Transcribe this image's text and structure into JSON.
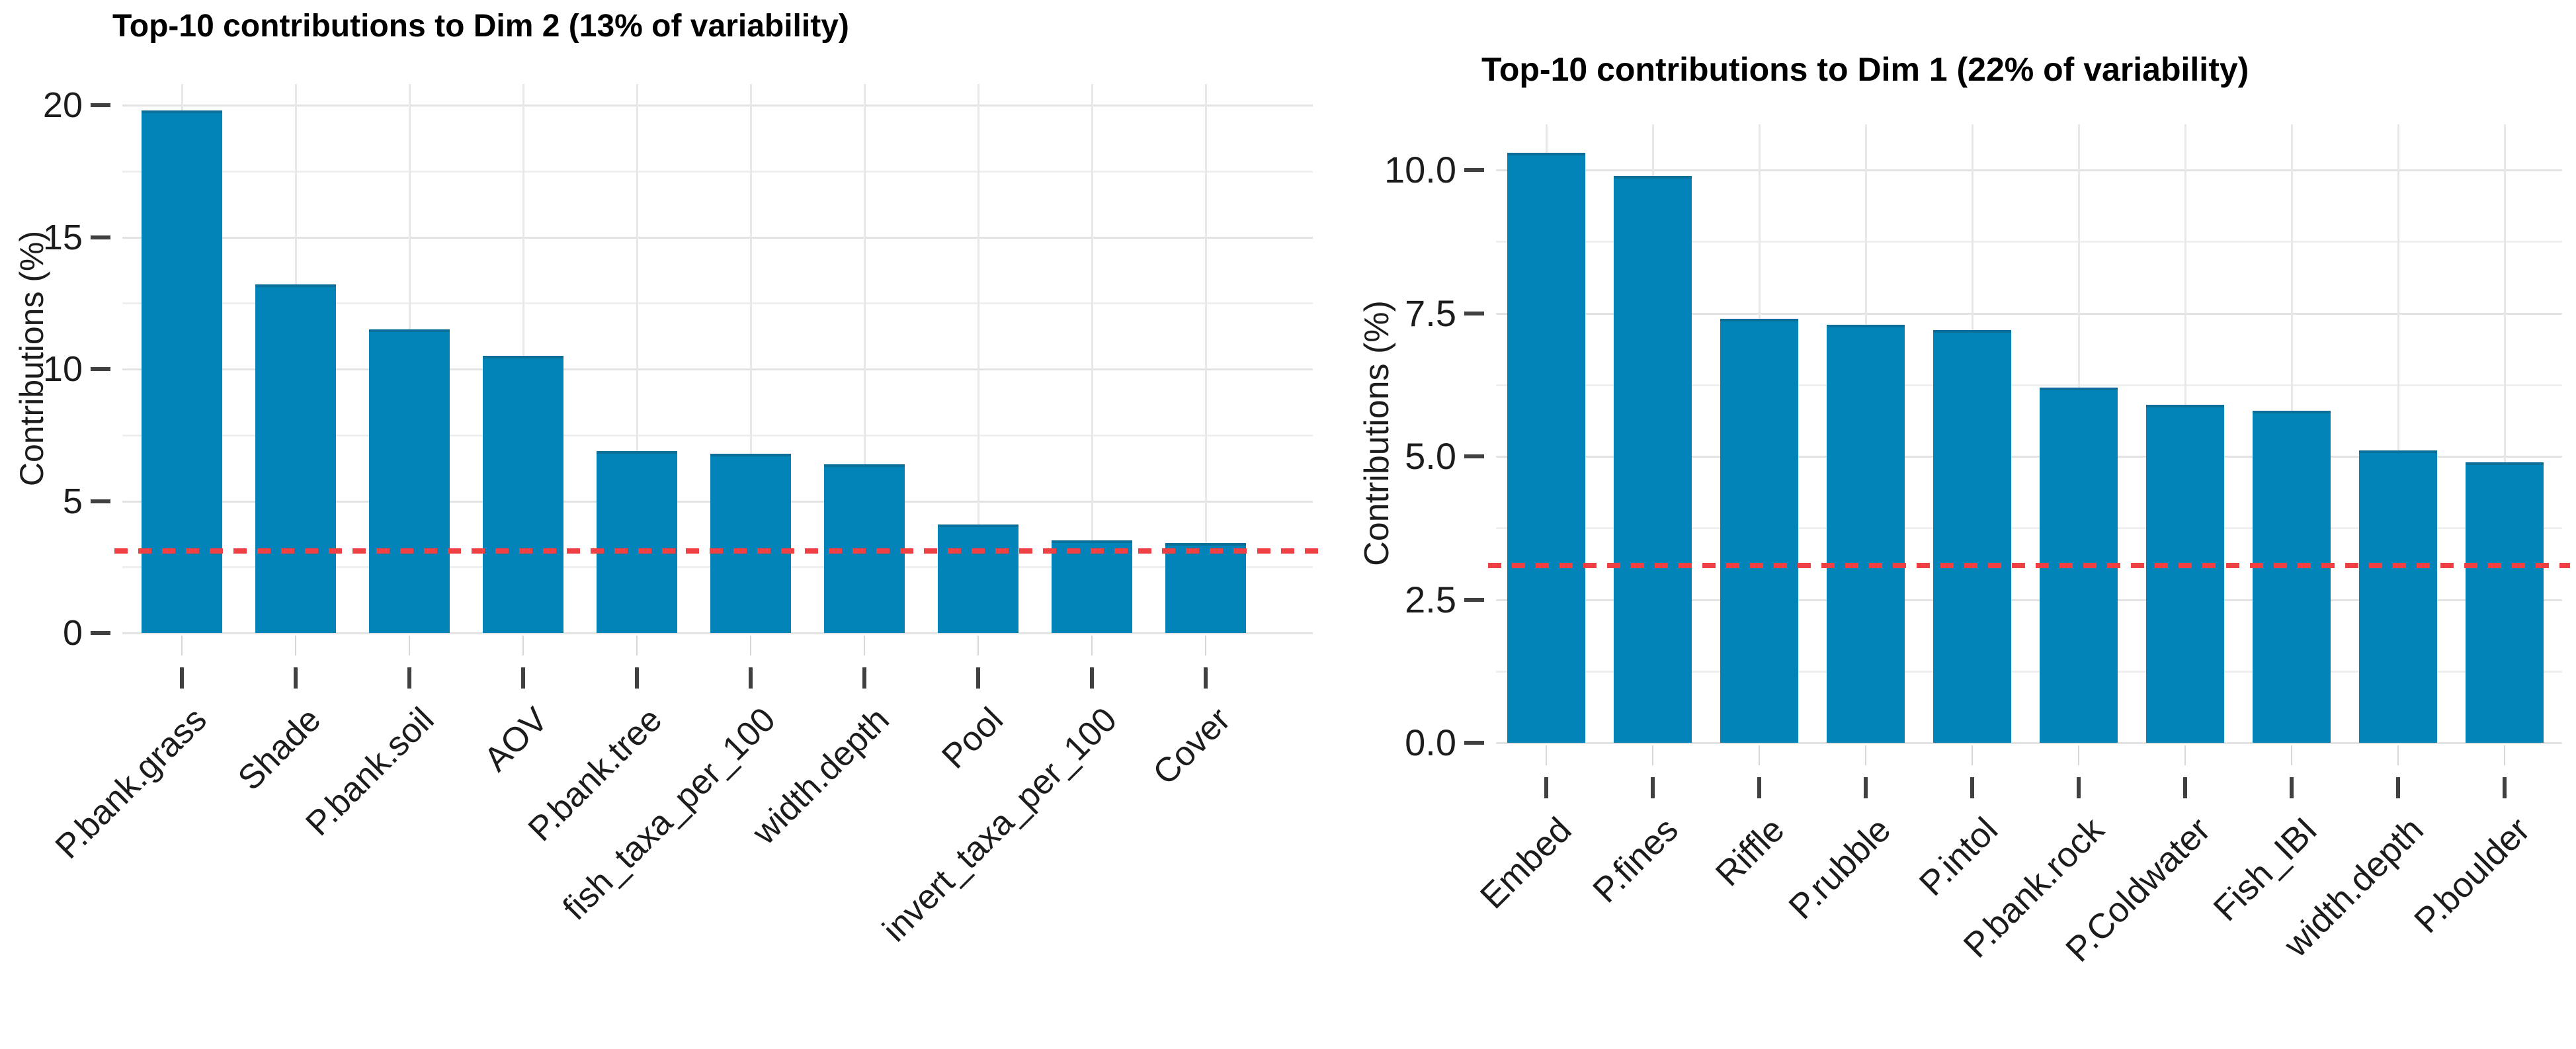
{
  "chart_data": [
    {
      "type": "bar",
      "title": "Top-10 contributions to Dim 2 (13% of variability)",
      "ylabel": "Contributions (%)",
      "xlabel": "",
      "categories": [
        "P.bank.grass",
        "Shade",
        "P.bank.soil",
        "AOV",
        "P.bank.tree",
        "fish_taxa_per_100",
        "width.depth",
        "Pool",
        "invert_taxa_per_100",
        "Cover"
      ],
      "values": [
        19.8,
        13.2,
        11.5,
        10.5,
        6.9,
        6.8,
        6.4,
        4.1,
        3.5,
        3.4
      ],
      "ytick_values": [
        0,
        5,
        10,
        15,
        20
      ],
      "ytick_labels": [
        "0",
        "5",
        "10",
        "15",
        "20"
      ],
      "minor_ticks": [
        2.5,
        7.5,
        12.5,
        17.5
      ],
      "ylim": [
        0,
        20.8
      ],
      "threshold": 3.1,
      "bar_color": "#0284b8",
      "bar_edge_color": "#0c6f9a",
      "threshold_color": "#ef4043",
      "grid": "on",
      "legend": "none"
    },
    {
      "type": "bar",
      "title": "Top-10 contributions to Dim 1 (22% of variability)",
      "ylabel": "Contributions (%)",
      "xlabel": "",
      "categories": [
        "Embed",
        "P.fines",
        "Riffle",
        "P.rubble",
        "P.intol",
        "P.bank.rock",
        "P.Coldwater",
        "Fish_IBI",
        "width.depth",
        "P.boulder"
      ],
      "values": [
        10.3,
        9.9,
        7.4,
        7.3,
        7.2,
        6.2,
        5.9,
        5.8,
        5.1,
        4.9
      ],
      "ytick_values": [
        0,
        2.5,
        5,
        7.5,
        10
      ],
      "ytick_labels": [
        "0.0",
        "2.5",
        "5.0",
        "7.5",
        "10.0"
      ],
      "minor_ticks": [
        1.25,
        3.75,
        6.25,
        8.75
      ],
      "ylim": [
        0,
        10.8
      ],
      "threshold": 3.1,
      "bar_color": "#0284b8",
      "bar_edge_color": "#0c6f9a",
      "threshold_color": "#ef4043",
      "grid": "on",
      "legend": "none"
    }
  ]
}
